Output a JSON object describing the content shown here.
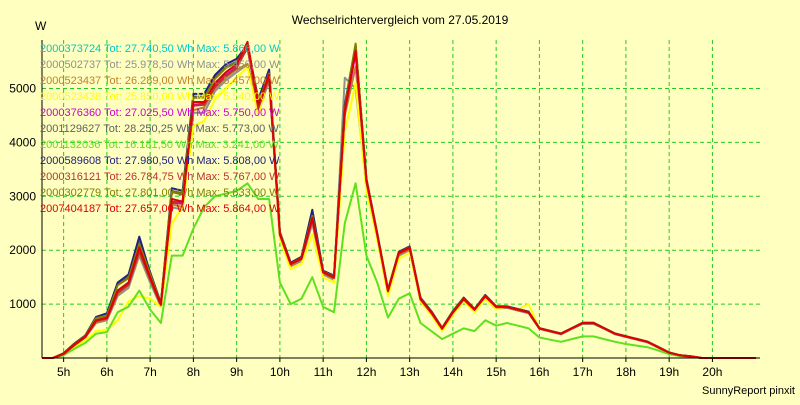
{
  "chart_data": {
    "type": "line",
    "title": "Wechselrichtervergleich vom 27.05.2019",
    "ylabel": "W",
    "footer": "SunnyReport pinxit",
    "x_ticks": [
      "5h",
      "6h",
      "7h",
      "8h",
      "9h",
      "10h",
      "11h",
      "12h",
      "13h",
      "14h",
      "15h",
      "16h",
      "17h",
      "18h",
      "19h",
      "20h"
    ],
    "xlim": [
      4.5,
      21.1
    ],
    "ylim": [
      0,
      5900
    ],
    "y_ticks": [
      1000,
      2000,
      3000,
      4000,
      5000
    ],
    "grid": true,
    "legend_position": "top-left",
    "x": [
      4.5,
      4.75,
      5.0,
      5.25,
      5.5,
      5.75,
      6.0,
      6.25,
      6.5,
      6.75,
      7.0,
      7.25,
      7.5,
      7.75,
      8.0,
      8.25,
      8.5,
      8.75,
      9.0,
      9.25,
      9.5,
      9.75,
      10.0,
      10.25,
      10.5,
      10.75,
      11.0,
      11.25,
      11.5,
      11.75,
      12.0,
      12.25,
      12.5,
      12.75,
      13.0,
      13.25,
      13.5,
      13.75,
      14.0,
      14.25,
      14.5,
      14.75,
      15.0,
      15.25,
      15.5,
      15.75,
      16.0,
      16.25,
      16.5,
      16.75,
      17.0,
      17.25,
      17.5,
      17.75,
      18.0,
      18.25,
      18.5,
      18.75,
      19.0,
      19.25,
      19.5,
      19.75,
      20.0,
      20.25,
      20.5,
      20.75,
      21.0
    ],
    "series": [
      {
        "name": "2000373724 Tot: 27.740,50 Wh Max: 5.866,00 W",
        "color": "#00c8c8",
        "values": [
          0,
          0,
          80,
          250,
          400,
          700,
          750,
          1250,
          1400,
          2050,
          1500,
          1000,
          2950,
          2900,
          4750,
          4750,
          5100,
          5300,
          5450,
          5800,
          4700,
          5250,
          2300,
          1750,
          1850,
          2600,
          1600,
          1500,
          4600,
          5700,
          3300,
          2300,
          1250,
          1950,
          2050,
          1100,
          850,
          550,
          850,
          1100,
          900,
          1150,
          950,
          950,
          900,
          850,
          550,
          500,
          450,
          550,
          650,
          650,
          550,
          450,
          400,
          350,
          300,
          200,
          100,
          50,
          30,
          0,
          0,
          0,
          0,
          0,
          0
        ]
      },
      {
        "name": "2000502737 Tot: 25.978,50 Wh Max: 5.450,00 W",
        "color": "#909090",
        "values": [
          0,
          0,
          70,
          230,
          380,
          650,
          700,
          1150,
          1300,
          1900,
          1400,
          950,
          2800,
          2750,
          4550,
          4550,
          4950,
          5150,
          5300,
          5450,
          4550,
          5150,
          2250,
          1700,
          1800,
          2500,
          1550,
          1450,
          5200,
          5000,
          3200,
          2250,
          1200,
          1900,
          2000,
          1050,
          800,
          520,
          820,
          1050,
          880,
          1120,
          920,
          930,
          880,
          830,
          540,
          490,
          440,
          540,
          630,
          630,
          540,
          440,
          390,
          340,
          290,
          190,
          95,
          45,
          25,
          0,
          0,
          0,
          0,
          0,
          0
        ]
      },
      {
        "name": "2000523437 Tot: 26.289,00 Wh Max: 5.457,00 W",
        "color": "#c08030",
        "values": [
          0,
          0,
          75,
          240,
          390,
          660,
          720,
          1180,
          1350,
          1950,
          1450,
          970,
          2850,
          2800,
          4600,
          4650,
          5000,
          5200,
          5350,
          5457,
          4600,
          5200,
          2280,
          1720,
          1820,
          2550,
          1580,
          1470,
          4500,
          5400,
          3250,
          2270,
          1220,
          1920,
          2020,
          1070,
          820,
          530,
          830,
          1070,
          890,
          1130,
          930,
          940,
          890,
          840,
          545,
          495,
          445,
          545,
          640,
          640,
          545,
          445,
          395,
          345,
          295,
          195,
          98,
          48,
          28,
          0,
          0,
          0,
          0,
          0,
          0
        ]
      },
      {
        "name": "2000523438 Tot: 25.850,00 Wh Max: 5.540,00 W",
        "color": "#ffff00",
        "values": [
          0,
          0,
          60,
          200,
          330,
          500,
          520,
          700,
          1050,
          1150,
          1100,
          950,
          2500,
          2800,
          4300,
          4400,
          4800,
          5000,
          5200,
          5400,
          4500,
          5300,
          2200,
          1650,
          1750,
          2300,
          1500,
          1400,
          4200,
          5100,
          3100,
          2200,
          1150,
          1850,
          1950,
          1050,
          800,
          500,
          800,
          1050,
          850,
          1100,
          900,
          950,
          900,
          1000,
          550,
          500,
          450,
          550,
          650,
          650,
          550,
          450,
          400,
          350,
          300,
          200,
          100,
          50,
          30,
          0,
          0,
          0,
          0,
          0,
          0
        ]
      },
      {
        "name": "2000376360 Tot: 27.025,50 Wh Max: 5.750,00 W",
        "color": "#d000d0",
        "values": [
          0,
          0,
          75,
          245,
          395,
          690,
          740,
          1230,
          1380,
          2000,
          1480,
          990,
          2900,
          2880,
          4700,
          4720,
          5050,
          5250,
          5400,
          5750,
          4650,
          5220,
          2290,
          1740,
          1840,
          2580,
          1590,
          1490,
          4550,
          5650,
          3280,
          2290,
          1240,
          1940,
          2040,
          1090,
          840,
          545,
          845,
          1090,
          895,
          1145,
          945,
          945,
          895,
          845,
          548,
          498,
          448,
          548,
          648,
          648,
          548,
          448,
          398,
          348,
          298,
          198,
          99,
          49,
          29,
          0,
          0,
          0,
          0,
          0,
          0
        ]
      },
      {
        "name": "2001129627 Tot: 28.250,25 Wh Max: 5.773,00 W",
        "color": "#606060",
        "values": [
          0,
          0,
          90,
          270,
          420,
          760,
          800,
          1380,
          1500,
          2150,
          1600,
          1020,
          3100,
          3050,
          4850,
          4850,
          5200,
          5400,
          5500,
          5773,
          4750,
          5300,
          2330,
          1760,
          1870,
          2650,
          1610,
          1520,
          4650,
          5773,
          3320,
          2310,
          1260,
          1960,
          2060,
          1110,
          860,
          555,
          860,
          1110,
          905,
          1160,
          955,
          955,
          905,
          855,
          552,
          502,
          452,
          552,
          652,
          652,
          552,
          452,
          402,
          352,
          302,
          202,
          101,
          51,
          31,
          0,
          0,
          0,
          0,
          0,
          0
        ]
      },
      {
        "name": "2001132036 Tot: 16.181,50 Wh Max: 3.241,00 W",
        "color": "#60e020",
        "values": [
          0,
          0,
          50,
          170,
          280,
          450,
          480,
          850,
          950,
          1250,
          900,
          650,
          1900,
          1900,
          2400,
          2800,
          3000,
          3050,
          3100,
          3241,
          2950,
          2950,
          1400,
          1000,
          1100,
          1500,
          950,
          850,
          2500,
          3241,
          1900,
          1400,
          750,
          1100,
          1200,
          650,
          500,
          350,
          450,
          550,
          500,
          700,
          600,
          650,
          600,
          550,
          380,
          340,
          300,
          350,
          400,
          400,
          350,
          300,
          260,
          230,
          200,
          140,
          70,
          35,
          20,
          0,
          0,
          0,
          0,
          0,
          0
        ]
      },
      {
        "name": "2000589608 Tot: 27.980,50 Wh Max: 5.808,00 W",
        "color": "#202080",
        "values": [
          0,
          0,
          85,
          265,
          415,
          760,
          830,
          1400,
          1550,
          2250,
          1580,
          1010,
          3150,
          3100,
          4900,
          4900,
          5250,
          5450,
          5550,
          5808,
          4800,
          5350,
          2340,
          1770,
          1880,
          2750,
          1620,
          1530,
          4700,
          5808,
          3330,
          2320,
          1270,
          1970,
          2070,
          1120,
          870,
          560,
          870,
          1120,
          910,
          1170,
          960,
          960,
          910,
          860,
          555,
          505,
          455,
          555,
          655,
          655,
          555,
          455,
          405,
          355,
          305,
          205,
          102,
          52,
          32,
          0,
          0,
          0,
          0,
          0,
          0
        ]
      },
      {
        "name": "2000316121 Tot: 26.784,75 Wh Max: 5.767,00 W",
        "color": "#c03030",
        "values": [
          0,
          0,
          72,
          235,
          385,
          680,
          730,
          1210,
          1360,
          1980,
          1460,
          980,
          2880,
          2860,
          4680,
          4700,
          5030,
          5230,
          5380,
          5767,
          4630,
          5210,
          2285,
          1735,
          1835,
          2570,
          1585,
          1485,
          4540,
          5767,
          3270,
          2285,
          1235,
          1935,
          2035,
          1085,
          835,
          540,
          840,
          1085,
          893,
          1143,
          943,
          943,
          893,
          843,
          547,
          497,
          447,
          547,
          647,
          647,
          547,
          447,
          397,
          347,
          297,
          197,
          98,
          48,
          28,
          0,
          0,
          0,
          0,
          0,
          0
        ]
      },
      {
        "name": "2000302779 Tot: 27.801,00 Wh Max: 5.833,00 W",
        "color": "#808000",
        "values": [
          0,
          0,
          82,
          260,
          410,
          740,
          790,
          1350,
          1480,
          2120,
          1560,
          1005,
          3080,
          3030,
          4830,
          4830,
          5180,
          5380,
          5480,
          5833,
          4730,
          5280,
          2320,
          1755,
          1860,
          2640,
          1605,
          1515,
          4640,
          5833,
          3310,
          2305,
          1255,
          1955,
          2055,
          1105,
          855,
          552,
          855,
          1105,
          902,
          1157,
          952,
          952,
          902,
          852,
          551,
          501,
          451,
          551,
          651,
          651,
          551,
          451,
          401,
          351,
          301,
          201,
          100,
          50,
          30,
          0,
          0,
          0,
          0,
          0,
          0
        ]
      },
      {
        "name": "2007404187 Tot: 27.657,00 Wh Max: 5.864,00 W",
        "color": "#e00000",
        "values": [
          0,
          0,
          78,
          250,
          400,
          700,
          750,
          1250,
          1400,
          2050,
          1500,
          1000,
          2950,
          2900,
          4750,
          4750,
          5100,
          5300,
          5450,
          5864,
          4700,
          5250,
          2300,
          1750,
          1850,
          2600,
          1600,
          1500,
          4600,
          5700,
          3300,
          2300,
          1250,
          1950,
          2050,
          1100,
          850,
          550,
          850,
          1100,
          900,
          1150,
          950,
          950,
          900,
          850,
          550,
          500,
          450,
          550,
          650,
          650,
          550,
          450,
          400,
          350,
          300,
          200,
          100,
          50,
          30,
          0,
          0,
          0,
          0,
          0,
          0
        ]
      }
    ]
  }
}
